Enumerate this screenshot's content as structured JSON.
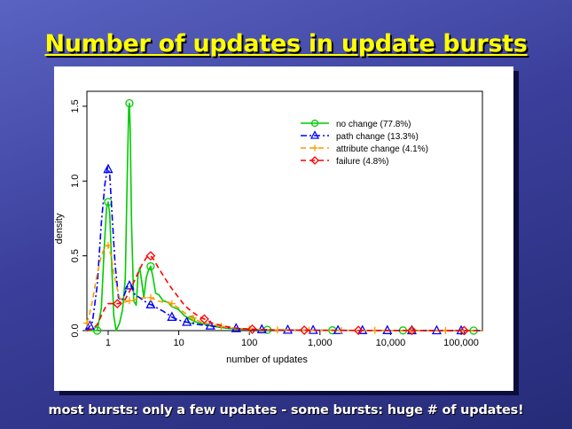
{
  "slide": {
    "title": "Number of updates in update bursts",
    "caption": "most bursts: only a few updates - some bursts: huge # of updates!"
  },
  "colors": {
    "title": "#ffff00",
    "caption": "#ffffff",
    "no_change": "#00cc00",
    "path_change": "#0000ff",
    "attribute_change": "#ff9900",
    "failure": "#ff0000"
  },
  "chart_data": {
    "type": "line",
    "title": "",
    "xlabel": "number of updates",
    "ylabel": "density",
    "x_scale": "log10",
    "xlim": [
      0.5,
      200000
    ],
    "ylim": [
      0,
      1.6
    ],
    "x_ticks": [
      {
        "value": 1,
        "label": "1"
      },
      {
        "value": 10,
        "label": "10"
      },
      {
        "value": 100,
        "label": "100"
      },
      {
        "value": 1000,
        "label": "1,000"
      },
      {
        "value": 10000,
        "label": "10,000"
      },
      {
        "value": 100000,
        "label": "100,000"
      }
    ],
    "y_ticks": [
      {
        "value": 0,
        "label": "0.0"
      },
      {
        "value": 0.5,
        "label": "0.5"
      },
      {
        "value": 1.0,
        "label": "1.0"
      },
      {
        "value": 1.5,
        "label": "1.5"
      }
    ],
    "legend_position": "top-right",
    "series": [
      {
        "name": "no change (77.8%)",
        "color": "#00cc00",
        "dash": "solid",
        "marker": "circle",
        "x": [
          0.5,
          0.7,
          0.8,
          0.88,
          0.95,
          1.0,
          1.05,
          1.12,
          1.2,
          1.3,
          1.45,
          1.6,
          1.75,
          1.85,
          1.95,
          2.0,
          2.05,
          2.15,
          2.3,
          2.5,
          2.65,
          2.8,
          3.0,
          3.2,
          3.45,
          3.7,
          4.0,
          4.3,
          4.7,
          5.2,
          6.0,
          7.0,
          8.0,
          9.0,
          10.0,
          12.0,
          14.0,
          17.0,
          20.0,
          25.0,
          30.0,
          40.0,
          50.0,
          70.0,
          100.0,
          150.0,
          200.0,
          300.0,
          500.0,
          1000.0,
          2000.0,
          5000.0,
          10000.0,
          30000.0,
          100000.0,
          200000.0
        ],
        "y": [
          0.0,
          0.0,
          0.15,
          0.55,
          0.82,
          0.86,
          0.78,
          0.45,
          0.1,
          0.0,
          0.05,
          0.14,
          0.35,
          0.95,
          1.48,
          1.52,
          1.35,
          0.7,
          0.2,
          0.17,
          0.38,
          0.42,
          0.32,
          0.22,
          0.35,
          0.4,
          0.43,
          0.36,
          0.25,
          0.24,
          0.2,
          0.19,
          0.16,
          0.15,
          0.14,
          0.1,
          0.08,
          0.06,
          0.05,
          0.04,
          0.03,
          0.02,
          0.015,
          0.01,
          0.008,
          0.006,
          0.005,
          0.004,
          0.003,
          0.002,
          0.002,
          0.001,
          0.001,
          0.001,
          0.0,
          0.0
        ],
        "marker_x": [
          0.7,
          1.0,
          2.0,
          4.0,
          15.0,
          180.0,
          1500.0,
          15000.0,
          150000.0
        ]
      },
      {
        "name": "path change (13.3%)",
        "color": "#0000ff",
        "dash": "dashdot",
        "marker": "triangle",
        "x": [
          0.5,
          0.6,
          0.7,
          0.8,
          0.9,
          0.98,
          1.05,
          1.12,
          1.25,
          1.4,
          1.55,
          1.7,
          1.9,
          2.1,
          2.4,
          2.8,
          3.2,
          3.7,
          4.2,
          5.0,
          6.0,
          7.0,
          8.0,
          10.0,
          12.0,
          15.0,
          20.0,
          30.0,
          40.0,
          60.0,
          100.0,
          200.0,
          500.0,
          1000.0,
          3000.0,
          10000.0,
          30000.0,
          100000.0,
          200000.0
        ],
        "y": [
          0.0,
          0.06,
          0.3,
          0.72,
          0.98,
          1.09,
          1.05,
          0.82,
          0.45,
          0.22,
          0.2,
          0.24,
          0.3,
          0.3,
          0.24,
          0.22,
          0.2,
          0.18,
          0.17,
          0.15,
          0.13,
          0.11,
          0.09,
          0.07,
          0.06,
          0.05,
          0.04,
          0.03,
          0.025,
          0.015,
          0.01,
          0.005,
          0.003,
          0.002,
          0.001,
          0.001,
          0.0,
          0.0,
          0.0
        ],
        "marker_x": [
          0.55,
          1.0,
          2.0,
          4.0,
          8.0,
          13.0,
          28.0,
          65.0,
          150.0,
          350.0,
          800.0,
          1800.0,
          4000.0,
          9000.0,
          20000.0,
          45000.0,
          100000.0
        ]
      },
      {
        "name": "attribute change (4.1%)",
        "color": "#ff9900",
        "dash": "dashed",
        "marker": "plus",
        "x": [
          0.5,
          0.55,
          0.6,
          0.7,
          0.8,
          0.9,
          1.0,
          1.1,
          1.25,
          1.45,
          1.7,
          2.0,
          2.5,
          3.0,
          4.0,
          5.0,
          6.0,
          7.0,
          8.0,
          10.0,
          12.0,
          15.0,
          20.0,
          30.0,
          50.0,
          100.0,
          200.0,
          500.0,
          1000.0,
          10000.0,
          100000.0,
          200000.0
        ],
        "y": [
          0.05,
          0.12,
          0.2,
          0.38,
          0.5,
          0.56,
          0.57,
          0.5,
          0.34,
          0.22,
          0.19,
          0.2,
          0.21,
          0.22,
          0.22,
          0.2,
          0.19,
          0.19,
          0.18,
          0.15,
          0.12,
          0.09,
          0.06,
          0.04,
          0.02,
          0.01,
          0.005,
          0.003,
          0.002,
          0.001,
          0.0,
          0.0
        ],
        "marker_x": [
          0.5,
          1.0,
          2.0,
          4.0,
          8.0,
          16.0,
          40.0,
          100.0,
          250.0,
          700.0,
          2000.0,
          6000.0,
          20000.0,
          60000.0
        ]
      },
      {
        "name": "failure (4.8%)",
        "color": "#ff0000",
        "dash": "dashed",
        "marker": "diamond",
        "x": [
          0.5,
          0.6,
          0.7,
          0.8,
          0.9,
          1.0,
          1.2,
          1.4,
          1.7,
          2.0,
          2.5,
          3.0,
          3.5,
          4.0,
          4.5,
          5.0,
          6.0,
          7.0,
          8.0,
          10.0,
          12.0,
          15.0,
          20.0,
          25.0,
          30.0,
          40.0,
          50.0,
          70.0,
          100.0,
          200.0,
          500.0,
          1000.0,
          10000.0,
          100000.0,
          200000.0
        ],
        "y": [
          0.0,
          0.01,
          0.04,
          0.1,
          0.15,
          0.18,
          0.18,
          0.18,
          0.2,
          0.26,
          0.36,
          0.44,
          0.49,
          0.5,
          0.47,
          0.43,
          0.37,
          0.32,
          0.28,
          0.22,
          0.17,
          0.13,
          0.09,
          0.07,
          0.05,
          0.035,
          0.025,
          0.015,
          0.01,
          0.005,
          0.003,
          0.002,
          0.001,
          0.0,
          0.0
        ],
        "marker_x": [
          1.35,
          4.0,
          23.0,
          110.0,
          600.0,
          3500.0,
          20000.0,
          110000.0
        ]
      }
    ]
  }
}
